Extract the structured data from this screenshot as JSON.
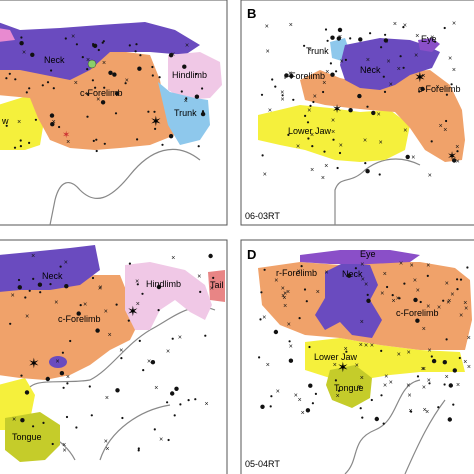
{
  "colors": {
    "neck": "#6a4bbf",
    "forelimb": "#f0a26a",
    "hindlimb": "#f0c8e6",
    "trunk": "#8ec8ec",
    "lowerjaw": "#f5f03c",
    "tongue": "#c5cc2a",
    "tail": "#e88585",
    "eye": "#8a4fc8",
    "outline": "#888888",
    "border": "#555555"
  },
  "panels": {
    "A": {
      "labels": {
        "neck": "Neck",
        "forelimb": "c-Forelimb",
        "hindlimb": "Hindlimb",
        "trunk": "Trunk",
        "w": "w"
      }
    },
    "B": {
      "letter": "B",
      "caption": "06-03RT",
      "labels": {
        "eye": "Eye",
        "trunk": "Trunk",
        "neck": "Neck",
        "rforelimb": "r-Forelimb",
        "cforelimb": "c-Forelimb",
        "lowerjaw": "Lower Jaw"
      }
    },
    "C": {
      "labels": {
        "neck": "Neck",
        "hindlimb": "Hindlimb",
        "tail": "Tail",
        "forelimb": "c-Forelimb",
        "tongue": "Tongue"
      }
    },
    "D": {
      "letter": "D",
      "caption": "05-04RT",
      "labels": {
        "eye": "Eye",
        "rforelimb": "r-Forelimb",
        "neck": "Neck",
        "cforelimb": "c-Forelimb",
        "lowerjaw": "Lower Jaw",
        "tongue": "Tongue"
      }
    }
  }
}
